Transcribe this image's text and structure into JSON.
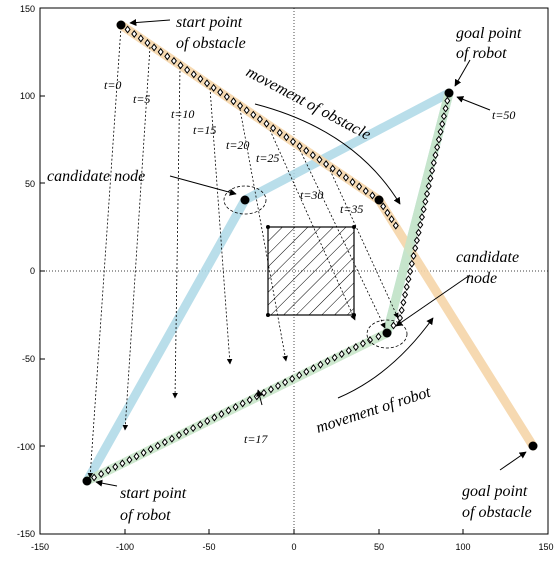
{
  "chart_data": {
    "type": "diagram",
    "xlim": [
      -150,
      150
    ],
    "ylim": [
      -150,
      150
    ],
    "x_ticks": [
      "-150",
      "-100",
      "-50",
      "0",
      "50",
      "100",
      "150"
    ],
    "y_ticks": [
      "150",
      "100",
      "50",
      "0",
      "-50",
      "-100",
      "-150"
    ],
    "grid": false,
    "points": {
      "robot_start": [
        -120,
        -120
      ],
      "robot_goal": [
        90,
        102
      ],
      "obstacle_start": [
        -100,
        140
      ],
      "obstacle_goal": [
        140,
        -100
      ],
      "candidate_node_1": [
        -29,
        41
      ],
      "candidate_node_2": [
        54,
        -36
      ],
      "obstacle_t35": [
        50,
        41
      ]
    },
    "static_obstacle_rect": {
      "x": [
        -15,
        35
      ],
      "y": [
        -26,
        26
      ]
    },
    "colors": {
      "candidate_path": "#add8e6",
      "selected_path": "#c8e6c9",
      "obstacle_path": "#f5d5a8",
      "markers": "#000000"
    }
  },
  "labels": {
    "start_obstacle": [
      "start point",
      "of obstacle"
    ],
    "goal_robot": [
      "goal point",
      "of robot"
    ],
    "movement_obstacle": "movement of obstacle",
    "candidate_node_left": "candidate node",
    "candidate_node_right": [
      "candidate",
      "node"
    ],
    "movement_robot": "movement of robot",
    "start_robot": [
      "start point",
      "of robot"
    ],
    "goal_obstacle": [
      "goal point",
      "of obstacle"
    ],
    "t0": "t=0",
    "t5": "t=5",
    "t10": "t=10",
    "t15": "t=15",
    "t20": "t=20",
    "t25": "t=25",
    "t30": "t=30",
    "t35": "t=35",
    "t50": "t=50",
    "t17": "t=17"
  }
}
